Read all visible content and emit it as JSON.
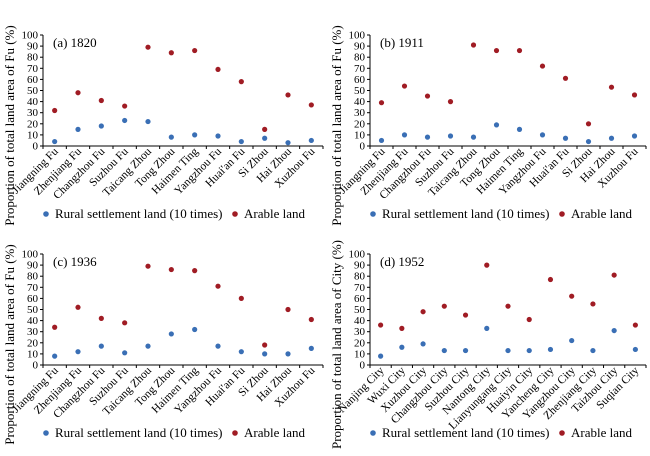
{
  "chart_data": [
    {
      "type": "scatter",
      "title": "(a) 1820",
      "ylabel": "Proportion of total land area of Fu (%)",
      "ylim": [
        0,
        100
      ],
      "yticks": [
        0,
        10,
        20,
        30,
        40,
        50,
        60,
        70,
        80,
        90,
        100
      ],
      "categories": [
        "Jiangning Fu",
        "Zhenjiang Fu",
        "Changzhou Fu",
        "Suzhou Fu",
        "Taicang Zhou",
        "Tong Zhou",
        "Haimen Ting",
        "Yangzhou Fu",
        "Huai'an Fu",
        "Si Zhou",
        "Hai Zhou",
        "Xuzhou Fu"
      ],
      "series": [
        {
          "name": "Rural settlement land (10 times)",
          "color": "#3a6fb5",
          "values": [
            4,
            15,
            18,
            23,
            22,
            8,
            10,
            9,
            4,
            7,
            3,
            5
          ]
        },
        {
          "name": "Arable land",
          "color": "#a01c24",
          "values": [
            32,
            48,
            41,
            36,
            89,
            84,
            86,
            69,
            58,
            15,
            46,
            37
          ]
        }
      ],
      "grid": false,
      "legend": "bottom"
    },
    {
      "type": "scatter",
      "title": "(b) 1911",
      "ylabel": "Proportion of total land area of Fu (%)",
      "ylim": [
        0,
        100
      ],
      "yticks": [
        0,
        10,
        20,
        30,
        40,
        50,
        60,
        70,
        80,
        90,
        100
      ],
      "categories": [
        "Jiangning Fu",
        "Zhenjiang Fu",
        "Changzhou Fu",
        "Suzhou Fu",
        "Taicang Zhou",
        "Tong Zhou",
        "Haimen Ting",
        "Yangzhou Fu",
        "Huai'an Fu",
        "Si Zhou",
        "Hai Zhou",
        "Xuzhou Fu"
      ],
      "series": [
        {
          "name": "Rural settlement land (10 times)",
          "color": "#3a6fb5",
          "values": [
            5,
            10,
            8,
            9,
            8,
            19,
            15,
            10,
            7,
            4,
            7,
            9
          ]
        },
        {
          "name": "Arable land",
          "color": "#a01c24",
          "values": [
            39,
            54,
            45,
            40,
            91,
            86,
            86,
            72,
            61,
            20,
            53,
            46
          ]
        }
      ],
      "grid": false,
      "legend": "bottom"
    },
    {
      "type": "scatter",
      "title": "(c) 1936",
      "ylabel": "Proportion of total land area of Fu (%)",
      "ylim": [
        0,
        100
      ],
      "yticks": [
        0,
        10,
        20,
        30,
        40,
        50,
        60,
        70,
        80,
        90,
        100
      ],
      "categories": [
        "Jiangning Fu",
        "Zhenjiang Fu",
        "Changzhou Fu",
        "Suzhou Fu",
        "Taicang Zhou",
        "Tong Zhou",
        "Haimen Ting",
        "Yangzhou Fu",
        "Huai'an Fu",
        "Si Zhou",
        "Hai Zhou",
        "Xuzhou Fu"
      ],
      "series": [
        {
          "name": "Rural settlement land (10 times)",
          "color": "#3a6fb5",
          "values": [
            8,
            12,
            17,
            11,
            17,
            28,
            32,
            17,
            12,
            10,
            10,
            15
          ]
        },
        {
          "name": "Arable land",
          "color": "#a01c24",
          "values": [
            34,
            52,
            42,
            38,
            89,
            86,
            85,
            71,
            60,
            18,
            50,
            41
          ]
        }
      ],
      "grid": false,
      "legend": "bottom"
    },
    {
      "type": "scatter",
      "title": "(d) 1952",
      "ylabel": "Proportion of total land area of City (%)",
      "ylim": [
        0,
        100
      ],
      "yticks": [
        0,
        10,
        20,
        30,
        40,
        50,
        60,
        70,
        80,
        90,
        100
      ],
      "categories": [
        "Nanjing City",
        "Wuxi City",
        "Xuzhou City",
        "Changzhou City",
        "Suzhou City",
        "Nantong City",
        "Lianyungang City",
        "Huaiyin City",
        "Yancheng City",
        "Yangzhou City",
        "Zhenjiang City",
        "Taizhou City",
        "Suqian City"
      ],
      "series": [
        {
          "name": "Rural settlement land (10 times)",
          "color": "#3a6fb5",
          "values": [
            8,
            16,
            19,
            13,
            13,
            33,
            13,
            13,
            14,
            22,
            13,
            31,
            14
          ]
        },
        {
          "name": "Arable land",
          "color": "#a01c24",
          "values": [
            36,
            33,
            48,
            53,
            45,
            90,
            53,
            41,
            77,
            62,
            55,
            81,
            36
          ]
        }
      ],
      "grid": false,
      "legend": "bottom"
    }
  ]
}
